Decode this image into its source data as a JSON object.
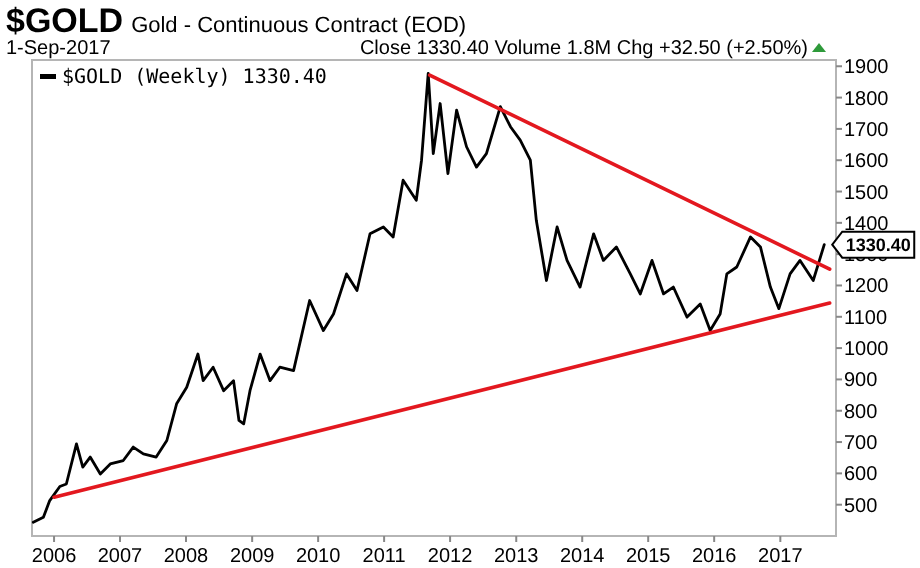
{
  "chart_data": {
    "type": "line",
    "title": "$GOLD Gold - Continuous Contract (EOD)",
    "subtitle": "1-Sep-2017",
    "annotations": [
      "Close 1330.40  Volume 1.8M  Chg +32.50 (+2.50%)",
      {
        "text": "1330.40",
        "x": "2017-09-01",
        "y": 1330.4
      }
    ],
    "xlim": [
      "2005-09-01",
      "2017-11-05"
    ],
    "ylim": [
      400,
      1920
    ],
    "xticks": [
      "2006",
      "2007",
      "2008",
      "2009",
      "2010",
      "2011",
      "2012",
      "2013",
      "2014",
      "2015",
      "2016",
      "2017"
    ],
    "yticks": [
      500,
      600,
      700,
      800,
      900,
      1000,
      1100,
      1200,
      1300,
      1400,
      1500,
      1600,
      1700,
      1800,
      1900
    ],
    "grid": false,
    "legend": "top left",
    "marker": "none",
    "line_style": "solid",
    "series": [
      {
        "name": "$GOLD (Weekly) 1330.40",
        "color": "#000000",
        "x": [
          "2005-09-08",
          "2005-11-03",
          "2005-12-08",
          "2006-02-02",
          "2006-03-10",
          "2006-05-05",
          "2006-06-09",
          "2006-07-20",
          "2006-09-14",
          "2006-11-08",
          "2007-01-19",
          "2007-03-15",
          "2007-05-10",
          "2007-07-20",
          "2007-09-17",
          "2007-11-10",
          "2008-01-05",
          "2008-03-07",
          "2008-04-05",
          "2008-05-30",
          "2008-07-27",
          "2008-09-20",
          "2008-10-20",
          "2008-11-15",
          "2008-12-20",
          "2009-02-14",
          "2009-04-10",
          "2009-06-03",
          "2009-08-18",
          "2009-11-15",
          "2010-01-30",
          "2010-03-27",
          "2010-06-07",
          "2010-08-04",
          "2010-10-15",
          "2010-12-28",
          "2011-02-20",
          "2011-04-16",
          "2011-06-28",
          "2011-07-27",
          "2011-09-02",
          "2011-09-30",
          "2011-11-07",
          "2011-12-20",
          "2012-02-06",
          "2012-04-01",
          "2012-05-26",
          "2012-07-20",
          "2012-10-05",
          "2012-11-30",
          "2013-01-23",
          "2013-03-20",
          "2013-04-22",
          "2013-06-17",
          "2013-08-15",
          "2013-10-09",
          "2013-12-20",
          "2014-03-05",
          "2014-04-28",
          "2014-07-09",
          "2014-09-24",
          "2014-11-18",
          "2015-01-22",
          "2015-03-27",
          "2015-05-20",
          "2015-08-04",
          "2015-10-16",
          "2015-12-10",
          "2016-02-03",
          "2016-03-11",
          "2016-05-05",
          "2016-07-20",
          "2016-09-13",
          "2016-11-07",
          "2016-12-24",
          "2017-02-24",
          "2017-04-20",
          "2017-07-02",
          "2017-09-01"
        ],
        "values": [
          444,
          460,
          513,
          558,
          566,
          694,
          620,
          652,
          598,
          630,
          641,
          684,
          662,
          652,
          705,
          822,
          875,
          981,
          896,
          939,
          864,
          896,
          769,
          758,
          864,
          981,
          896,
          939,
          928,
          1152,
          1056,
          1109,
          1237,
          1184,
          1365,
          1387,
          1355,
          1536,
          1472,
          1600,
          1877,
          1621,
          1781,
          1557,
          1760,
          1643,
          1578,
          1621,
          1771,
          1707,
          1664,
          1600,
          1408,
          1216,
          1387,
          1280,
          1195,
          1365,
          1280,
          1323,
          1237,
          1173,
          1280,
          1173,
          1195,
          1099,
          1141,
          1056,
          1109,
          1237,
          1259,
          1355,
          1323,
          1195,
          1126,
          1237,
          1280,
          1216,
          1330.4
        ]
      },
      {
        "color": "#e3181f",
        "x": [
          "2011-09-10",
          "2017-10-01"
        ],
        "values": [
          1872,
          1252
        ]
      },
      {
        "color": "#e3181f",
        "x": [
          "2006-01-01",
          "2017-10-01"
        ],
        "values": [
          524,
          1144
        ]
      }
    ]
  }
}
